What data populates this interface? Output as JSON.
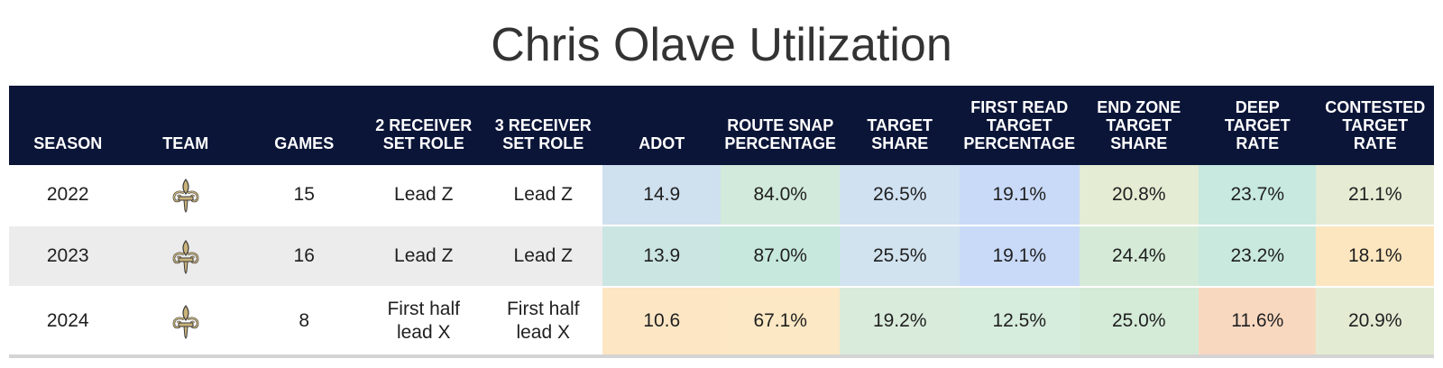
{
  "chart_data": {
    "type": "table",
    "title": "Chris Olave Utilization",
    "columns": [
      "Season",
      "Team",
      "Games",
      "2 Receiver Set Role",
      "3 Receiver Set Role",
      "ADOT",
      "Route Snap Percentage",
      "Target Share",
      "First Read Target Percentage",
      "End Zone Target Share",
      "Deep Target Rate",
      "Contested Target Rate"
    ],
    "rows": [
      {
        "season": "2022",
        "team_icon": "fleur-de-lis-icon",
        "games": "15",
        "role2": "Lead Z",
        "role3": "Lead Z",
        "metrics": [
          {
            "value": "14.9",
            "color": "#cfe0ef"
          },
          {
            "value": "84.0%",
            "color": "#d2eadb"
          },
          {
            "value": "26.5%",
            "color": "#d0e1f2"
          },
          {
            "value": "19.1%",
            "color": "#c9daf8"
          },
          {
            "value": "20.8%",
            "color": "#e4ecd3"
          },
          {
            "value": "23.7%",
            "color": "#c7e9df"
          },
          {
            "value": "21.1%",
            "color": "#e6ebd3"
          }
        ]
      },
      {
        "season": "2023",
        "team_icon": "fleur-de-lis-icon",
        "games": "16",
        "role2": "Lead Z",
        "role3": "Lead Z",
        "metrics": [
          {
            "value": "13.9",
            "color": "#cbe5e3"
          },
          {
            "value": "87.0%",
            "color": "#c7e9dd"
          },
          {
            "value": "25.5%",
            "color": "#d1e3ef"
          },
          {
            "value": "19.1%",
            "color": "#c9daf8"
          },
          {
            "value": "24.4%",
            "color": "#d5ebd7"
          },
          {
            "value": "23.2%",
            "color": "#c9e9df"
          },
          {
            "value": "18.1%",
            "color": "#fce6bf"
          }
        ]
      },
      {
        "season": "2024",
        "team_icon": "fleur-de-lis-icon",
        "games": "8",
        "role2": "First half lead X",
        "role3": "First half lead X",
        "metrics": [
          {
            "value": "10.6",
            "color": "#fde6c4"
          },
          {
            "value": "67.1%",
            "color": "#fce8c4"
          },
          {
            "value": "19.2%",
            "color": "#d9ebdb"
          },
          {
            "value": "12.5%",
            "color": "#d6ecdc"
          },
          {
            "value": "25.0%",
            "color": "#d4ebd8"
          },
          {
            "value": "11.6%",
            "color": "#f9d8c0"
          },
          {
            "value": "20.9%",
            "color": "#e4ebd3"
          }
        ]
      }
    ]
  },
  "header_bg": "#0b1538"
}
